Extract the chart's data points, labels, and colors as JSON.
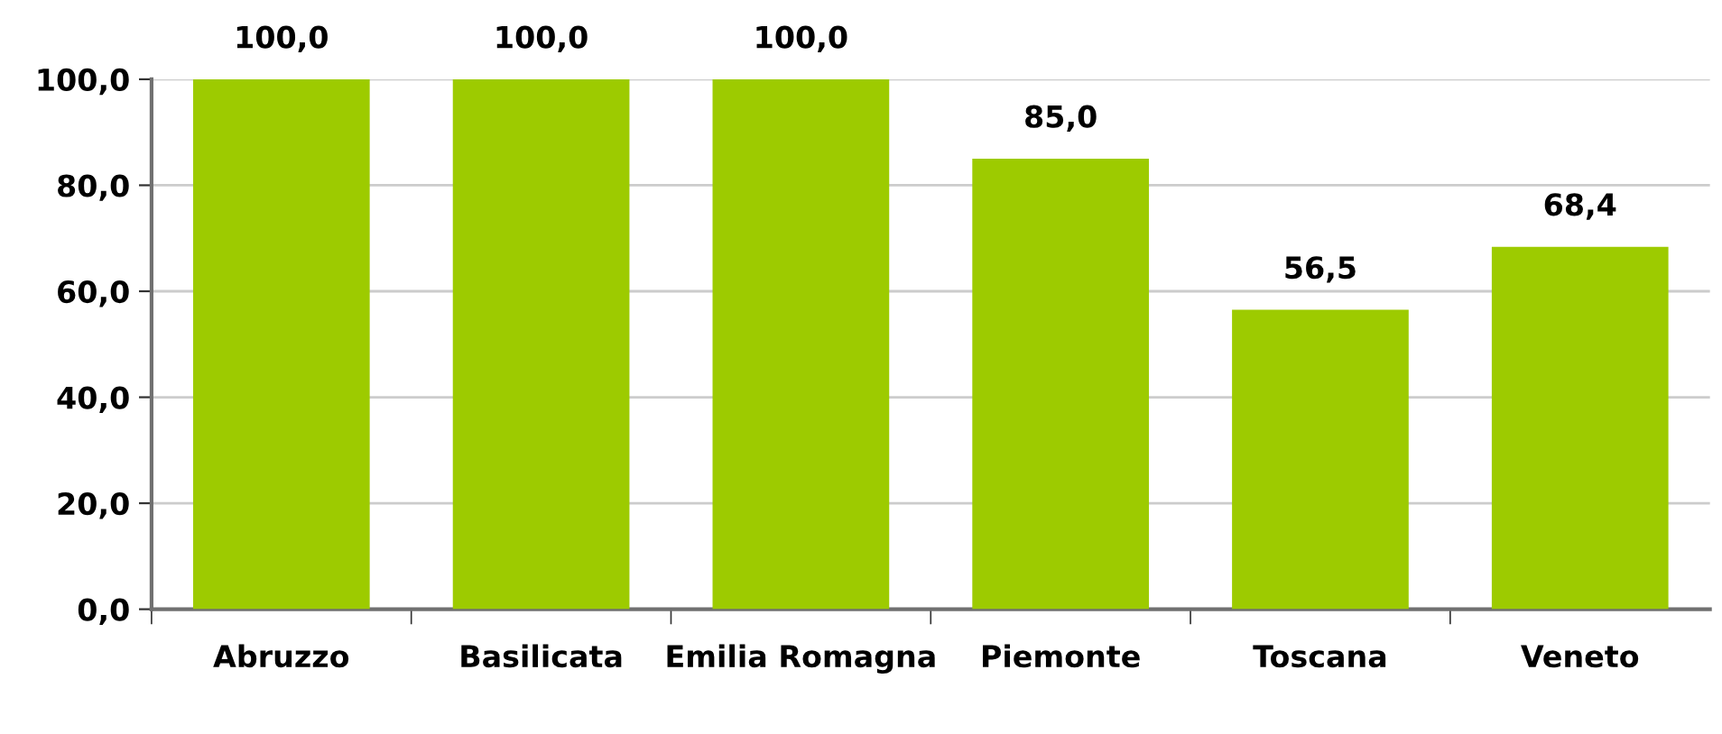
{
  "chart_data": {
    "type": "bar",
    "categories": [
      "Abruzzo",
      "Basilicata",
      "Emilia Romagna",
      "Piemonte",
      "Toscana",
      "Veneto"
    ],
    "values": [
      100.0,
      100.0,
      100.0,
      85.0,
      56.5,
      68.4
    ],
    "value_labels": [
      "100,0",
      "100,0",
      "100,0",
      "85,0",
      "56,5",
      "68,4"
    ],
    "color": "#9dcb00",
    "ylim": [
      0,
      100
    ],
    "yticks": [
      {
        "value": 0,
        "label": "0,0"
      },
      {
        "value": 20,
        "label": "20,0"
      },
      {
        "value": 40,
        "label": "40,0"
      },
      {
        "value": 60,
        "label": "60,0"
      },
      {
        "value": 80,
        "label": "80,0"
      },
      {
        "value": 100,
        "label": "100,0"
      }
    ],
    "grid": "y"
  }
}
